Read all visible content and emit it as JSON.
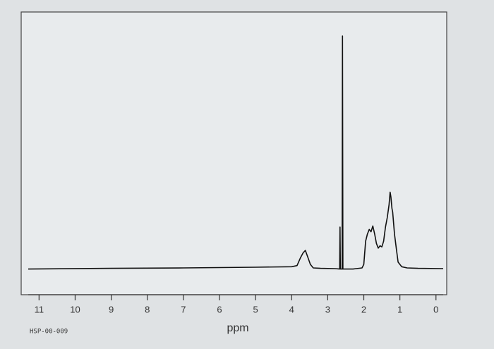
{
  "chart_data": {
    "type": "line",
    "x_label": "ppm",
    "code": "HSP-00-009",
    "x": [
      11.3,
      9.0,
      7.0,
      5.0,
      4.0,
      3.85,
      3.75,
      3.68,
      3.62,
      3.55,
      3.48,
      3.4,
      3.2,
      2.8,
      2.67,
      2.66,
      2.65,
      2.64,
      2.62,
      2.6,
      2.59,
      2.58,
      2.56,
      2.3,
      2.05,
      2.0,
      1.95,
      1.9,
      1.85,
      1.8,
      1.75,
      1.7,
      1.65,
      1.6,
      1.55,
      1.5,
      1.45,
      1.4,
      1.35,
      1.3,
      1.27,
      1.25,
      1.22,
      1.2,
      1.15,
      1.1,
      1.05,
      0.95,
      0.8,
      0.5,
      -0.2
    ],
    "values": [
      0,
      0.3,
      0.5,
      0.8,
      1,
      1.5,
      5,
      7,
      8,
      5,
      2,
      0.5,
      0.3,
      0.2,
      0,
      18,
      0,
      0,
      0,
      0,
      100,
      0,
      0,
      0,
      0.5,
      2,
      12,
      15,
      17,
      16,
      18.5,
      15,
      11,
      9,
      10,
      9.5,
      12,
      18,
      22,
      27.6,
      33,
      31,
      26,
      24.5,
      15,
      9,
      3,
      1,
      0.5,
      0.3,
      0.2
    ],
    "color": "#111111",
    "xlim": [
      11.3,
      -0.2
    ],
    "ylim": [
      -11,
      110
    ],
    "xticks": [
      11,
      10,
      9,
      8,
      7,
      6,
      5,
      4,
      3,
      2,
      1,
      0
    ]
  }
}
